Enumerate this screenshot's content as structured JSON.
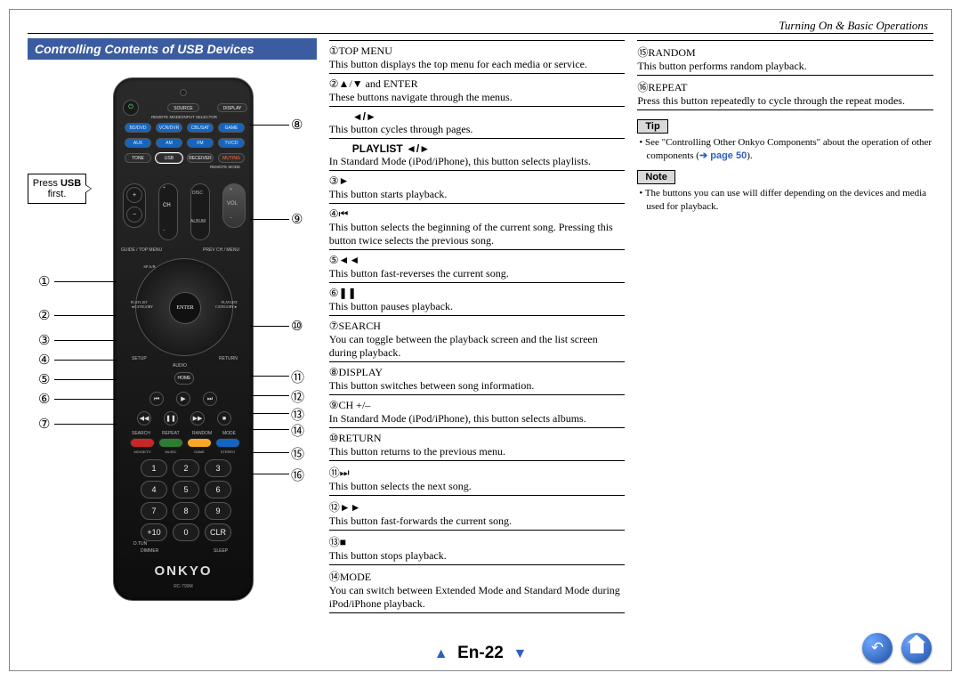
{
  "header": {
    "section": "Turning On & Basic Operations"
  },
  "banner": "Controlling Contents of USB Devices",
  "press": {
    "line1": "Press ",
    "bold": "USB",
    "line2": "first."
  },
  "leftCallouts": [
    "①",
    "②",
    "③",
    "④",
    "⑤",
    "⑥",
    "⑦"
  ],
  "rightCallouts": [
    "⑧",
    "⑨",
    "⑩",
    "⑪",
    "⑫",
    "⑬",
    "⑭",
    "⑮",
    "⑯"
  ],
  "remote": {
    "brand": "ONKYO",
    "model": "RC-799M",
    "modeLabel": "REMOTE MODE/INPUT SELECTOR",
    "row1": [
      "BD/DVD",
      "VCR/DVR",
      "CBL/SAT",
      "GAME"
    ],
    "row2": [
      "AUX",
      "AM",
      "FM",
      "TV/CD"
    ],
    "row3": [
      "TONE",
      "USB",
      "RECEIVER",
      "MUTING"
    ],
    "modeLabel2": "REMOTE MODE",
    "enter": "ENTER",
    "spab": "SP A/B",
    "playlistL": "PLAYLIST\n◄CATEGORY",
    "playlistR": "PLAYLIST\nCATEGORY►",
    "guide": "GUIDE / TOP MENU",
    "prevch": "PREV CH / MENU",
    "setup": "SETUP",
    "return": "RETURN",
    "audio": "AUDIO",
    "home": "HOME",
    "disc": "DISC",
    "ch": "CH",
    "album": "ALBUM",
    "vol": "VOL",
    "search": "SEARCH",
    "repeat": "REPEAT",
    "random": "RANDOM",
    "mode": "MODE",
    "colorLabels": [
      "MOVIE/TV",
      "MUSIC",
      "GAME",
      "STEREO"
    ],
    "nums": [
      "1",
      "2",
      "3",
      "4",
      "5",
      "6",
      "7",
      "8",
      "9",
      "+10",
      "0",
      "CLR"
    ],
    "dtun": "D.TUN",
    "dimmer": "DIMMER",
    "sleep": "SLEEP"
  },
  "mid": [
    {
      "n": "①",
      "h": "TOP MENU",
      "d": "This button displays the top menu for each media or service."
    },
    {
      "n": "②",
      "h": "▲/▼ and ENTER",
      "d": "These buttons navigate through the menus."
    },
    {
      "sub": "◄/►",
      "d": "This button cycles through pages."
    },
    {
      "sub": "PLAYLIST ◄/►",
      "d": "In Standard Mode (iPod/iPhone), this button selects playlists."
    },
    {
      "n": "③",
      "h": "►",
      "d": "This button starts playback."
    },
    {
      "n": "④",
      "h": "⏮",
      "d": "This button selects the beginning of the current song. Pressing this button twice selects the previous song."
    },
    {
      "n": "⑤",
      "h": "◄◄",
      "d": "This button fast-reverses the current song."
    },
    {
      "n": "⑥",
      "h": "❚❚",
      "d": "This button pauses playback."
    },
    {
      "n": "⑦",
      "h": "SEARCH",
      "d": "You can toggle between the playback screen and the list screen during playback."
    },
    {
      "n": "⑧",
      "h": "DISPLAY",
      "d": "This button switches between song information."
    },
    {
      "n": "⑨",
      "h": "CH +/–",
      "d": "In Standard Mode (iPod/iPhone), this button selects albums."
    },
    {
      "n": "⑩",
      "h": "RETURN",
      "d": "This button returns to the previous menu."
    },
    {
      "n": "⑪",
      "h": "⏭",
      "d": "This button selects the next song."
    },
    {
      "n": "⑫",
      "h": "►►",
      "d": "This button fast-forwards the current song."
    },
    {
      "n": "⑬",
      "h": "■",
      "d": "This button stops playback."
    },
    {
      "n": "⑭",
      "h": "MODE",
      "d": "You can switch between Extended Mode and Standard Mode during iPod/iPhone playback."
    }
  ],
  "right": [
    {
      "n": "⑮",
      "h": "RANDOM",
      "d": "This button performs random playback."
    },
    {
      "n": "⑯",
      "h": "REPEAT",
      "d": "Press this button repeatedly to cycle through the repeat modes."
    }
  ],
  "tip": {
    "label": "Tip",
    "text": "See \"Controlling Other Onkyo Components\" about the operation of other components (",
    "link": "➔ page 50",
    "after": ")."
  },
  "note": {
    "label": "Note",
    "text": "The buttons you can use will differ depending on the devices and media used for playback."
  },
  "footer": {
    "page": "En-22"
  }
}
